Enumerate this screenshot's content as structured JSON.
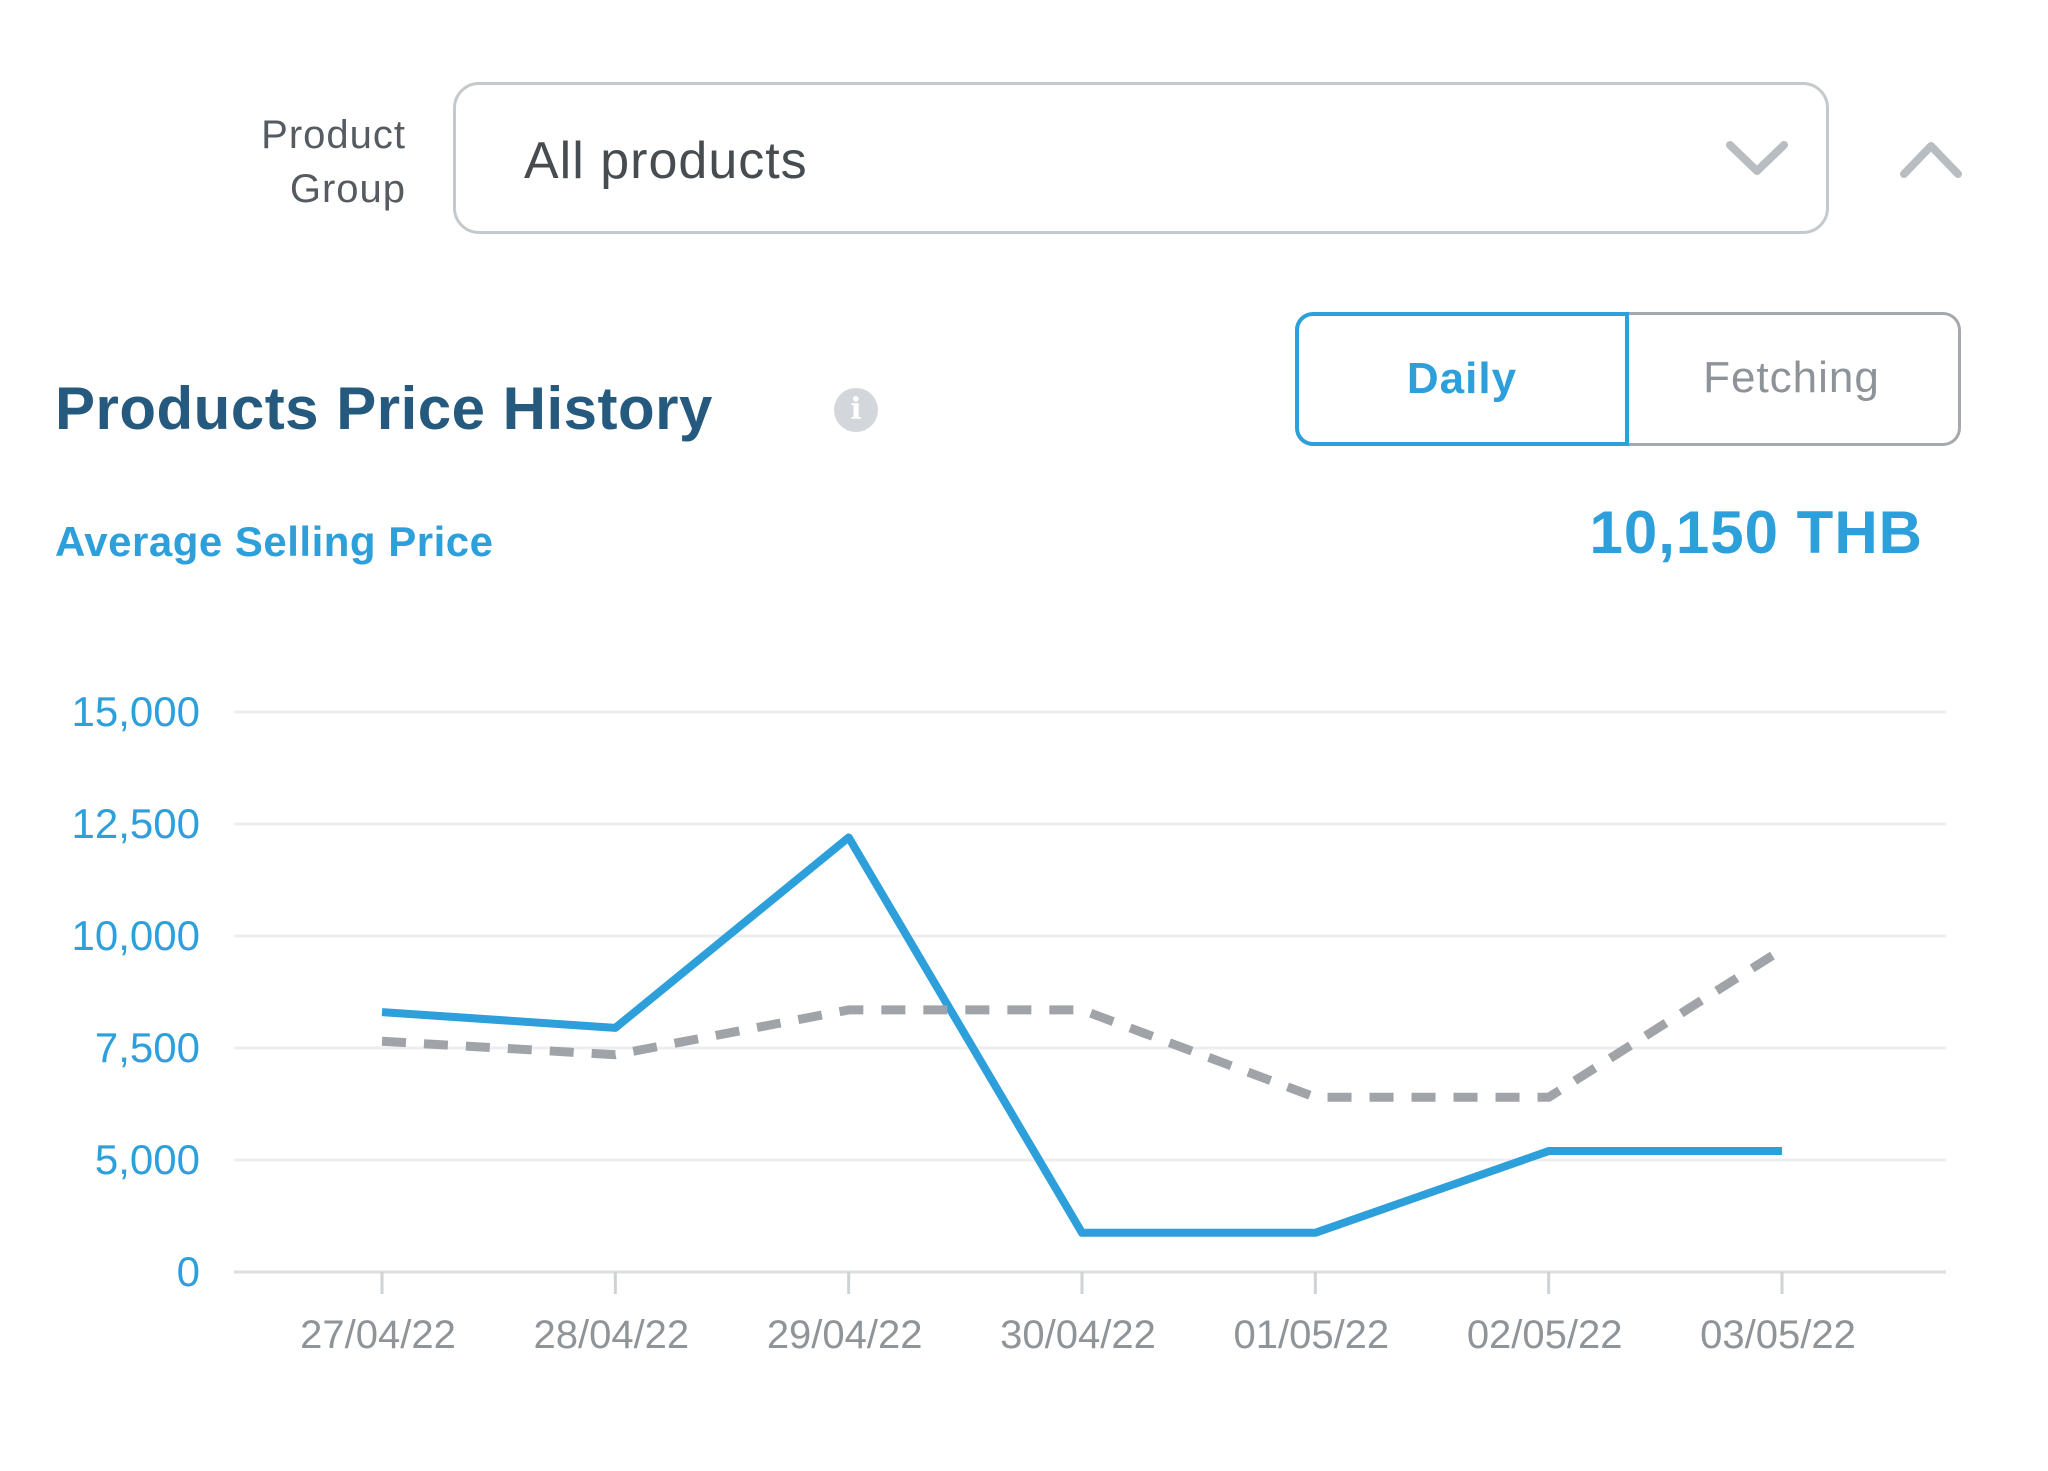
{
  "filter": {
    "label_line1": "Product",
    "label_line2": "Group",
    "selected": "All products",
    "chevron_icon": "chevron-down-icon",
    "collapse_icon": "chevron-up-icon"
  },
  "header": {
    "title": "Products Price History",
    "info_icon": "info-icon",
    "info_glyph": "i"
  },
  "toggle": {
    "options": [
      "Daily",
      "Fetching"
    ],
    "active": "Daily"
  },
  "metric": {
    "label": "Average Selling Price",
    "value": "10,150 THB"
  },
  "colors": {
    "accent": "#2d9fda",
    "title": "#25597d",
    "dashed_series": "#a0a4a8",
    "grid": "#eceef0"
  },
  "chart_data": {
    "type": "line",
    "categories": [
      "27/04/22",
      "28/04/22",
      "29/04/22",
      "30/04/22",
      "01/05/22",
      "02/05/22",
      "03/05/22"
    ],
    "yticks": [
      "0",
      "5,000",
      "7,500",
      "10,000",
      "12,500",
      "15,000"
    ],
    "series": [
      {
        "style": "solid",
        "color": "#2d9fda",
        "values": [
          8300,
          7950,
          12200,
          1750,
          1750,
          5200,
          5200
        ]
      },
      {
        "style": "dashed",
        "color": "#a0a4a8",
        "values": [
          7650,
          7350,
          8350,
          8350,
          6400,
          6400,
          9700
        ]
      }
    ],
    "grid": true,
    "legend": "none"
  }
}
